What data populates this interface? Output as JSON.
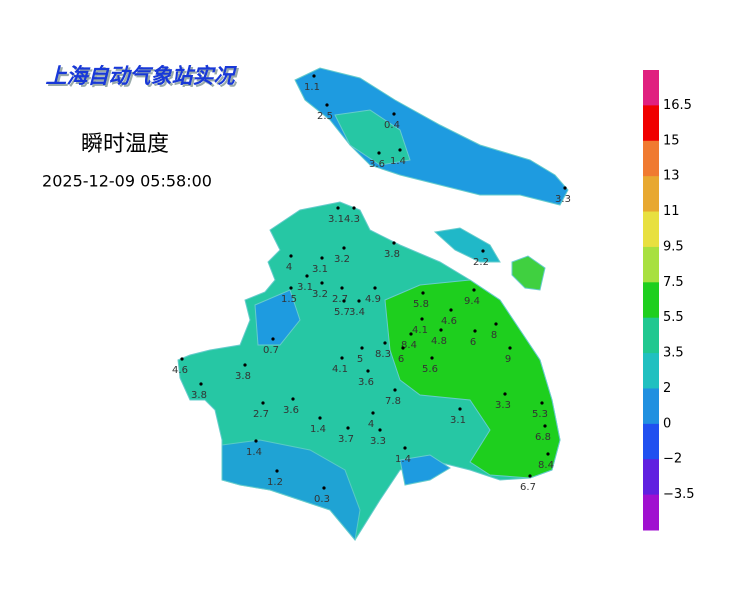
{
  "header": {
    "title": "上海自动气象站实况",
    "subtitle": "瞬时温度",
    "time": "2025-12-09 05:58:00"
  },
  "stations": [
    "1.1",
    "2.5",
    "0.4",
    "3.6",
    "1.4",
    "3.3",
    "3.1",
    "4.3",
    "3.2",
    "3.8",
    "2.2",
    "4",
    "3.1",
    "3.1",
    "3.2",
    "1.5",
    "2.7",
    "4.9",
    "5.8",
    "9.4",
    "5.7",
    "3.4",
    "4.6",
    "4.1",
    "8",
    "0.7",
    "8.4",
    "6",
    "8.3",
    "4.8",
    "6",
    "9",
    "4.6",
    "3.8",
    "4.1",
    "5",
    "5.6",
    "3.6",
    "3.8",
    "7.8",
    "2.7",
    "3.6",
    "3.3",
    "5.3",
    "3.1",
    "1.4",
    "4",
    "3.7",
    "3.3",
    "6.8",
    "1.4",
    "1.4",
    "8.4",
    "1.2",
    "6.7",
    "0.3"
  ],
  "legend": {
    "labels": [
      "16.5",
      "15",
      "13",
      "11",
      "9.5",
      "7.5",
      "5.5",
      "3.5",
      "2",
      "0",
      "−2",
      "−3.5"
    ],
    "colors": [
      "#e0207f",
      "#f00000",
      "#f07a30",
      "#e8a830",
      "#e8e040",
      "#a8e040",
      "#1ecf1e",
      "#20c890",
      "#20c0c0",
      "#2090e0",
      "#2050f0",
      "#6020e0",
      "#a010d0"
    ]
  }
}
